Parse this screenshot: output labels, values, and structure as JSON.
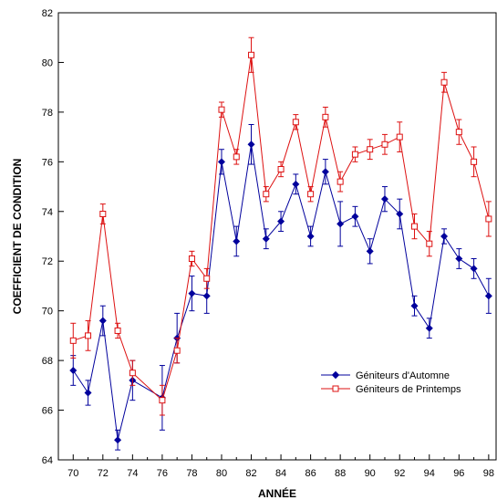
{
  "chart_data": {
    "type": "line",
    "title": "",
    "xlabel": "ANNÉE",
    "ylabel": "COEFFICIENT DE CONDITION",
    "xlim": [
      69,
      98.5
    ],
    "ylim": [
      64,
      82
    ],
    "x_ticks": [
      70,
      72,
      74,
      76,
      78,
      80,
      82,
      84,
      86,
      88,
      90,
      92,
      94,
      96,
      98
    ],
    "x_minor_ticks": [
      71,
      73,
      75,
      77,
      79,
      81,
      83,
      85,
      87,
      89,
      91,
      93,
      95,
      97
    ],
    "y_ticks": [
      64,
      66,
      68,
      70,
      72,
      74,
      76,
      78,
      80,
      82
    ],
    "grid": false,
    "legend_position": "bottom-right",
    "series": [
      {
        "name": "Géniteurs d'Automne",
        "color": "#00009c",
        "marker": "diamond",
        "x": [
          70,
          71,
          72,
          73,
          74,
          76,
          77,
          78,
          79,
          80,
          81,
          82,
          83,
          84,
          85,
          86,
          87,
          88,
          89,
          90,
          91,
          92,
          93,
          94,
          95,
          96,
          97,
          98
        ],
        "y": [
          67.6,
          66.7,
          69.6,
          64.8,
          67.2,
          66.5,
          68.9,
          70.7,
          70.6,
          76.0,
          72.8,
          76.7,
          72.9,
          73.6,
          75.1,
          73.0,
          75.6,
          73.5,
          73.8,
          72.4,
          74.5,
          73.9,
          70.2,
          69.3,
          73.0,
          72.1,
          71.7,
          70.6
        ],
        "error": [
          0.6,
          0.5,
          0.6,
          0.4,
          0.8,
          1.3,
          1.0,
          0.7,
          0.7,
          0.5,
          0.6,
          0.8,
          0.4,
          0.4,
          0.4,
          0.4,
          0.5,
          0.9,
          0.4,
          0.5,
          0.5,
          0.6,
          0.4,
          0.4,
          0.3,
          0.4,
          0.4,
          0.7
        ]
      },
      {
        "name": "Géniteurs de Printemps",
        "color": "#dd1010",
        "marker": "open-square",
        "x": [
          70,
          71,
          72,
          73,
          74,
          76,
          77,
          78,
          79,
          80,
          81,
          82,
          83,
          84,
          85,
          86,
          87,
          88,
          89,
          90,
          91,
          92,
          93,
          94,
          95,
          96,
          97,
          98
        ],
        "y": [
          68.8,
          69.0,
          73.9,
          69.2,
          67.5,
          66.4,
          68.4,
          72.1,
          71.3,
          78.1,
          76.2,
          80.3,
          74.7,
          75.7,
          77.6,
          74.7,
          77.8,
          75.2,
          76.3,
          76.5,
          76.7,
          77.0,
          73.4,
          72.7,
          79.2,
          77.2,
          76.0,
          73.7
        ],
        "error": [
          0.7,
          0.6,
          0.4,
          0.3,
          0.5,
          0.6,
          0.5,
          0.3,
          0.4,
          0.3,
          0.3,
          0.7,
          0.3,
          0.3,
          0.3,
          0.3,
          0.4,
          0.4,
          0.3,
          0.4,
          0.4,
          0.6,
          0.5,
          0.5,
          0.4,
          0.5,
          0.6,
          0.7
        ]
      }
    ]
  }
}
